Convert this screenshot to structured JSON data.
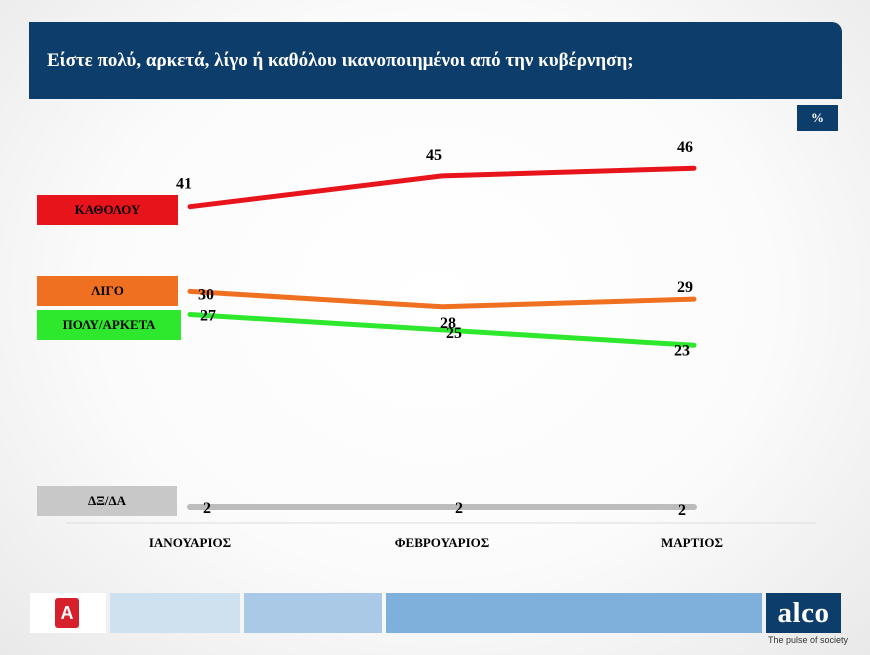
{
  "title": "Είστε πολύ, αρκετά, λίγο ή καθόλου ικανοποιημένοι από την κυβέρνηση;",
  "unit_badge": "%",
  "logo": {
    "brand": "alco",
    "tagline": "The pulse of society",
    "partner_icon": "alpha-news-logo",
    "partner_letter": "A"
  },
  "chart_data": {
    "type": "line",
    "title": "Είστε πολύ, αρκετά, λίγο ή καθόλου ικανοποιημένοι από την κυβέρνηση;",
    "categories": [
      "ΙΑΝΟΥΑΡΙΟΣ",
      "ΦΕΒΡΟΥΑΡΙΟΣ",
      "ΜΑΡΤΙΟΣ"
    ],
    "series": [
      {
        "name": "ΚΑΘΟΛΟΥ",
        "values": [
          41,
          45,
          46
        ],
        "color": "#e8141b"
      },
      {
        "name": "ΛΙΓΟ",
        "values": [
          30,
          28,
          29
        ],
        "color": "#f07021"
      },
      {
        "name": "ΠΟΛΥ/ΑΡΚΕΤΑ",
        "values": [
          27,
          25,
          23
        ],
        "color": "#2ee82e"
      },
      {
        "name": "ΔΞ/ΔΑ",
        "values": [
          2,
          2,
          2
        ],
        "color": "#bcbcbc"
      }
    ],
    "ylim": [
      0,
      50
    ],
    "grid": false,
    "legend": "left"
  }
}
